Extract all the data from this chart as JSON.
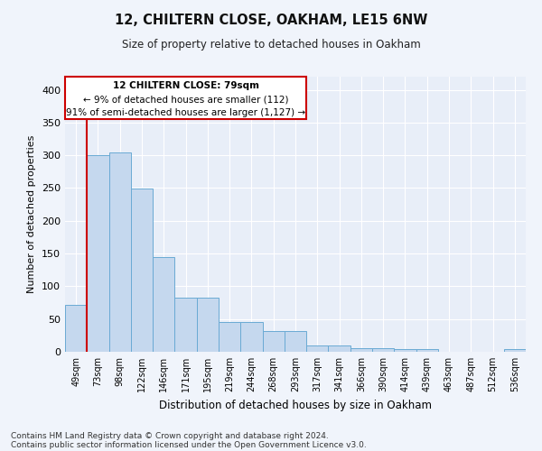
{
  "title": "12, CHILTERN CLOSE, OAKHAM, LE15 6NW",
  "subtitle": "Size of property relative to detached houses in Oakham",
  "xlabel": "Distribution of detached houses by size in Oakham",
  "ylabel": "Number of detached properties",
  "bar_color": "#c5d8ee",
  "bar_edge_color": "#6aaad4",
  "background_color": "#e8eef8",
  "grid_color": "#ffffff",
  "bin_labels": [
    "49sqm",
    "73sqm",
    "98sqm",
    "122sqm",
    "146sqm",
    "171sqm",
    "195sqm",
    "219sqm",
    "244sqm",
    "268sqm",
    "293sqm",
    "317sqm",
    "341sqm",
    "366sqm",
    "390sqm",
    "414sqm",
    "439sqm",
    "463sqm",
    "487sqm",
    "512sqm",
    "536sqm"
  ],
  "bar_values": [
    72,
    300,
    305,
    249,
    144,
    83,
    83,
    45,
    45,
    32,
    32,
    9,
    9,
    6,
    6,
    4,
    4,
    0,
    0,
    0,
    4
  ],
  "property_line_x": 0.5,
  "property_line_color": "#cc0000",
  "annotation_text_line1": "12 CHILTERN CLOSE: 79sqm",
  "annotation_text_line2": "← 9% of detached houses are smaller (112)",
  "annotation_text_line3": "91% of semi-detached houses are larger (1,127) →",
  "annotation_box_color": "#cc0000",
  "annotation_fill_color": "#ffffff",
  "footer_line1": "Contains HM Land Registry data © Crown copyright and database right 2024.",
  "footer_line2": "Contains public sector information licensed under the Open Government Licence v3.0.",
  "ylim": [
    0,
    420
  ],
  "yticks": [
    0,
    50,
    100,
    150,
    200,
    250,
    300,
    350,
    400
  ]
}
